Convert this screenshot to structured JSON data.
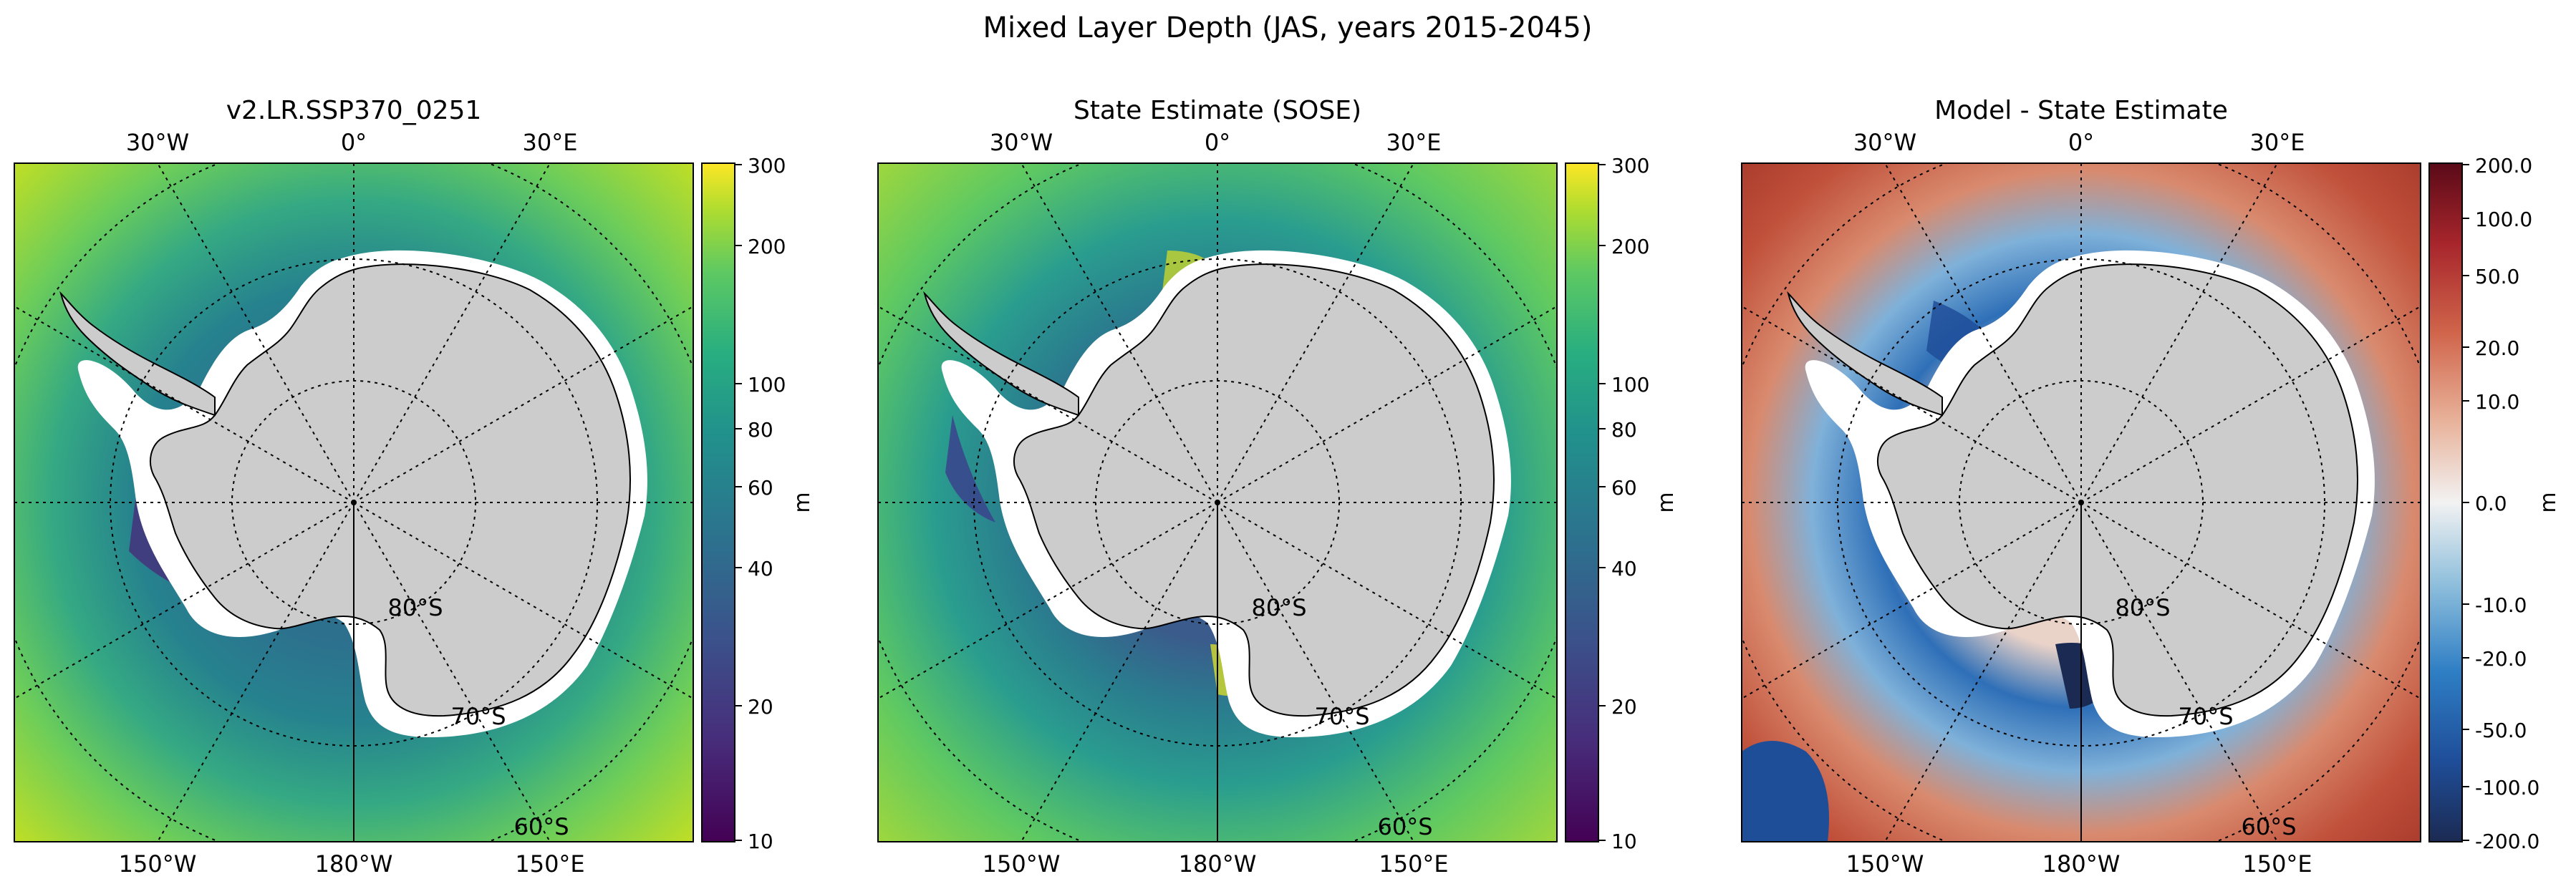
{
  "figure": {
    "suptitle": "Mixed Layer Depth (JAS, years 2015-2045)"
  },
  "panels": [
    {
      "title": "v2.LR.SSP370_0251",
      "top_lon_labels": [
        "30°W",
        "0°",
        "30°E"
      ],
      "bottom_lon_labels": [
        "150°W",
        "180°W",
        "150°E"
      ],
      "lat_labels": [
        "80°S",
        "70°S",
        "60°S"
      ],
      "colorbar": {
        "label": "m",
        "cmap": "viridis",
        "scale": "log",
        "ticks": [
          "300",
          "200",
          "100",
          "80",
          "60",
          "40",
          "20",
          "10"
        ]
      },
      "colors": {
        "open_ocean": "#b5d33a",
        "mid_ring": "#35a983",
        "coastal": "#2e6e8e"
      }
    },
    {
      "title": "State Estimate (SOSE)",
      "top_lon_labels": [
        "30°W",
        "0°",
        "30°E"
      ],
      "bottom_lon_labels": [
        "150°W",
        "180°W",
        "150°E"
      ],
      "lat_labels": [
        "80°S",
        "70°S",
        "60°S"
      ],
      "colorbar": {
        "label": "m",
        "cmap": "viridis",
        "scale": "log",
        "ticks": [
          "300",
          "200",
          "100",
          "80",
          "60",
          "40",
          "20",
          "10"
        ]
      },
      "colors": {
        "open_ocean": "#5ec962",
        "mid_ring": "#2a9d8f",
        "coastal": "#3b5b8c"
      }
    },
    {
      "title": "Model - State Estimate",
      "top_lon_labels": [
        "30°W",
        "0°",
        "30°E"
      ],
      "bottom_lon_labels": [
        "150°W",
        "180°W",
        "150°E"
      ],
      "lat_labels": [
        "80°S",
        "70°S",
        "60°S"
      ],
      "colorbar": {
        "label": "m",
        "cmap": "RdBu_r (symlog)",
        "scale": "symlog",
        "ticks": [
          "200.0",
          "100.0",
          "50.0",
          "20.0",
          "10.0",
          "0.0",
          "-10.0",
          "-20.0",
          "-50.0",
          "-100.0",
          "-200.0"
        ]
      },
      "colors": {
        "open_ocean": "#c0503a",
        "mid_ring": "#2e6fb7",
        "coastal": "#e9d2c8"
      }
    }
  ]
}
